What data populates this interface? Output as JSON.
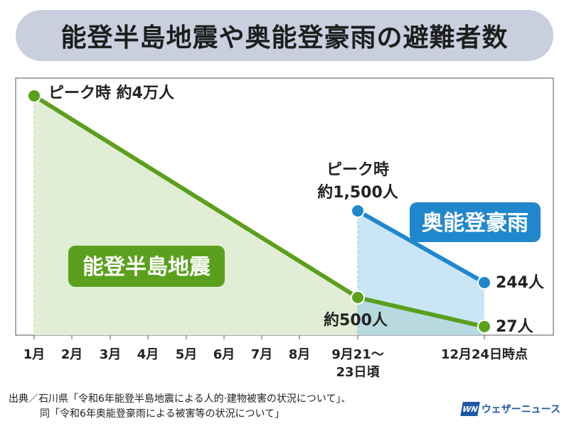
{
  "title": "能登半島地震や奥能登豪雨の避難者数",
  "chart_data": {
    "type": "line",
    "categories": [
      "1月",
      "2月",
      "3月",
      "4月",
      "5月",
      "6月",
      "7月",
      "8月",
      "9月21〜23日頃",
      "12月24日時点"
    ],
    "x_tick_labels": [
      "1月",
      "2月",
      "3月",
      "4月",
      "5月",
      "6月",
      "7月",
      "8月",
      "9月21〜|23日頃",
      "12月24日時点"
    ],
    "series": [
      {
        "name": "能登半島地震",
        "color": "#5aa01d",
        "fill": "#e2edd5",
        "points": [
          {
            "x": "1月",
            "y": 40000,
            "label": "ピーク時 約4万人"
          },
          {
            "x": "9月21〜23日頃",
            "y": 500,
            "label": "約500人"
          },
          {
            "x": "12月24日時点",
            "y": 27,
            "label": "27人"
          }
        ]
      },
      {
        "name": "奥能登豪雨",
        "color": "#2187cd",
        "fill": "#c4e3f5",
        "points": [
          {
            "x": "9月21〜23日頃",
            "y": 1500,
            "label": "ピーク時|約1,500人"
          },
          {
            "x": "12月24日時点",
            "y": 244,
            "label": "244人"
          }
        ]
      }
    ]
  },
  "source": {
    "line1": "出典／石川県「令和6年能登半島地震による人的·建物被害の状況について」、",
    "line2": "同「令和6年奥能登豪雨による被害等の状況について」"
  },
  "brand": {
    "mark": "WN",
    "name": "ウェザーニュース"
  }
}
